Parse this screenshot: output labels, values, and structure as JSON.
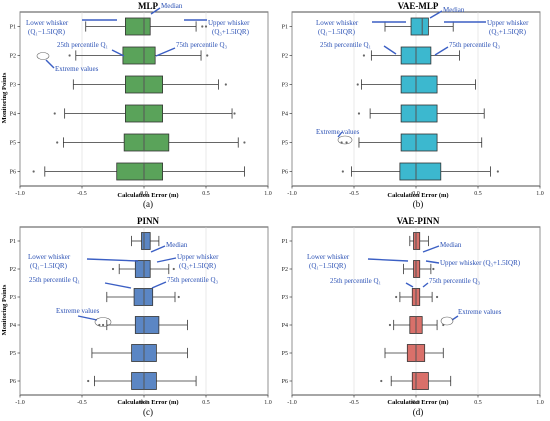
{
  "figure": {
    "subs": [
      "(a)",
      "(b)",
      "(c)",
      "(d)"
    ]
  },
  "chart_data": [
    {
      "type": "boxplot",
      "title": "MLP",
      "xlabel": "Calculation Error (m)",
      "ylabel": "Monitoring Points",
      "xlim": [
        -1.0,
        1.0
      ],
      "xticks": [
        "-1.0",
        "-0.5",
        "0.0",
        "0.5",
        "1.0"
      ],
      "categories": [
        "P1",
        "P2",
        "P3",
        "P4",
        "P5",
        "P6"
      ],
      "color": "#5aa35a",
      "series": [
        {
          "min": -0.47,
          "q1": -0.15,
          "median": 0.0,
          "q3": 0.05,
          "max": 0.42,
          "outliers": [
            0.47,
            0.5
          ]
        },
        {
          "min": -0.55,
          "q1": -0.17,
          "median": 0.0,
          "q3": 0.09,
          "max": 0.46,
          "outliers": [
            -0.6,
            0.51
          ]
        },
        {
          "min": -0.57,
          "q1": -0.15,
          "median": 0.0,
          "q3": 0.15,
          "max": 0.6,
          "outliers": [
            0.66
          ]
        },
        {
          "min": -0.64,
          "q1": -0.15,
          "median": 0.0,
          "q3": 0.15,
          "max": 0.71,
          "outliers": [
            -0.72,
            0.73
          ]
        },
        {
          "min": -0.65,
          "q1": -0.16,
          "median": 0.0,
          "q3": 0.2,
          "max": 0.76,
          "outliers": [
            -0.7,
            0.81
          ]
        },
        {
          "min": -0.8,
          "q1": -0.22,
          "median": 0.0,
          "q3": 0.15,
          "max": 0.81,
          "outliers": [
            -0.89
          ]
        }
      ],
      "annotations": [
        "Median",
        "Lower whisker",
        "(Q₁−1.5IQR)",
        "Upper whisker",
        "(Q₃+1.5IQR)",
        "25th percentile Q₁",
        "75th percentile Q₃",
        "Extreme values"
      ]
    },
    {
      "type": "boxplot",
      "title": "VAE-MLP",
      "xlabel": "Calculation Error (m)",
      "ylabel": "",
      "xlim": [
        -1.0,
        1.0
      ],
      "xticks": [
        "-1.0",
        "-0.5",
        "0.0",
        "0.5",
        "1.0"
      ],
      "categories": [
        "P1",
        "P2",
        "P3",
        "P4",
        "P5",
        "P6"
      ],
      "color": "#3cb8cf",
      "series": [
        {
          "min": -0.25,
          "q1": -0.04,
          "median": 0.05,
          "q3": 0.1,
          "max": 0.3,
          "outliers": []
        },
        {
          "min": -0.36,
          "q1": -0.12,
          "median": 0.0,
          "q3": 0.12,
          "max": 0.35,
          "outliers": [
            -0.42
          ]
        },
        {
          "min": -0.44,
          "q1": -0.12,
          "median": 0.0,
          "q3": 0.17,
          "max": 0.48,
          "outliers": [
            -0.47
          ]
        },
        {
          "min": -0.37,
          "q1": -0.12,
          "median": 0.0,
          "q3": 0.17,
          "max": 0.55,
          "outliers": [
            -0.46
          ]
        },
        {
          "min": -0.46,
          "q1": -0.12,
          "median": 0.0,
          "q3": 0.17,
          "max": 0.53,
          "outliers": [
            -0.6,
            -0.56
          ]
        },
        {
          "min": -0.52,
          "q1": -0.13,
          "median": 0.0,
          "q3": 0.2,
          "max": 0.6,
          "outliers": [
            -0.59,
            0.66
          ]
        }
      ],
      "annotations": [
        "Median",
        "Lower whisker",
        "(Q₁−1.5IQR)",
        "Upper whisker",
        "(Q₃+1.5IQR)",
        "25th percentile Q₁",
        "75th percentile Q₃",
        "Extreme values"
      ]
    },
    {
      "type": "boxplot",
      "title": "PINN",
      "xlabel": "Calculation Error (m)",
      "ylabel": "Monitoring Points",
      "xlim": [
        -1.0,
        1.0
      ],
      "xticks": [
        "-1.0",
        "-0.5",
        "0.0",
        "0.5",
        "1.0"
      ],
      "categories": [
        "P1",
        "P2",
        "P3",
        "P4",
        "P5",
        "P6"
      ],
      "color": "#5b86c4",
      "series": [
        {
          "min": -0.1,
          "q1": -0.02,
          "median": 0.0,
          "q3": 0.05,
          "max": 0.12,
          "outliers": []
        },
        {
          "min": -0.2,
          "q1": -0.07,
          "median": 0.0,
          "q3": 0.05,
          "max": 0.2,
          "outliers": [
            -0.25,
            0.24
          ]
        },
        {
          "min": -0.3,
          "q1": -0.08,
          "median": 0.0,
          "q3": 0.07,
          "max": 0.25,
          "outliers": [
            0.28
          ]
        },
        {
          "min": -0.3,
          "q1": -0.07,
          "median": 0.0,
          "q3": 0.12,
          "max": 0.35,
          "outliers": [
            -0.36,
            -0.33
          ]
        },
        {
          "min": -0.42,
          "q1": -0.1,
          "median": 0.0,
          "q3": 0.1,
          "max": 0.35,
          "outliers": []
        },
        {
          "min": -0.4,
          "q1": -0.1,
          "median": 0.0,
          "q3": 0.1,
          "max": 0.42,
          "outliers": [
            -0.45
          ]
        }
      ],
      "annotations": [
        "Median",
        "Lower whisker",
        "(Q₁−1.5IQR)",
        "Upper whisker",
        "(Q₃+1.5IQR)",
        "25th percentile Q₁",
        "75th percentile Q₃",
        "Extreme values"
      ]
    },
    {
      "type": "boxplot",
      "title": "VAE-PINN",
      "xlabel": "Calculation Error (m)",
      "ylabel": "",
      "xlim": [
        -1.0,
        1.0
      ],
      "xticks": [
        "-1.0",
        "-0.5",
        "0.0",
        "0.5",
        "1.0"
      ],
      "categories": [
        "P1",
        "P2",
        "P3",
        "P4",
        "P5",
        "P6"
      ],
      "color": "#d9706a",
      "series": [
        {
          "min": -0.05,
          "q1": -0.02,
          "median": 0.0,
          "q3": 0.03,
          "max": 0.1,
          "outliers": []
        },
        {
          "min": -0.1,
          "q1": -0.02,
          "median": 0.0,
          "q3": 0.03,
          "max": 0.12,
          "outliers": [
            0.14
          ]
        },
        {
          "min": -0.13,
          "q1": -0.03,
          "median": 0.0,
          "q3": 0.03,
          "max": 0.13,
          "outliers": [
            -0.16,
            0.17
          ]
        },
        {
          "min": -0.18,
          "q1": -0.05,
          "median": 0.0,
          "q3": 0.05,
          "max": 0.17,
          "outliers": [
            -0.21,
            0.22
          ]
        },
        {
          "min": -0.25,
          "q1": -0.07,
          "median": 0.0,
          "q3": 0.07,
          "max": 0.22,
          "outliers": []
        },
        {
          "min": -0.2,
          "q1": -0.03,
          "median": 0.0,
          "q3": 0.1,
          "max": 0.28,
          "outliers": [
            -0.28
          ]
        }
      ],
      "annotations": [
        "Median",
        "Lower whisker",
        "(Q₁−1.5IQR)",
        "Upper whisker (Q₃+1.5IQR)",
        "25th percentile Q₁",
        "75th percentile Q₃",
        "Extreme values"
      ]
    }
  ]
}
